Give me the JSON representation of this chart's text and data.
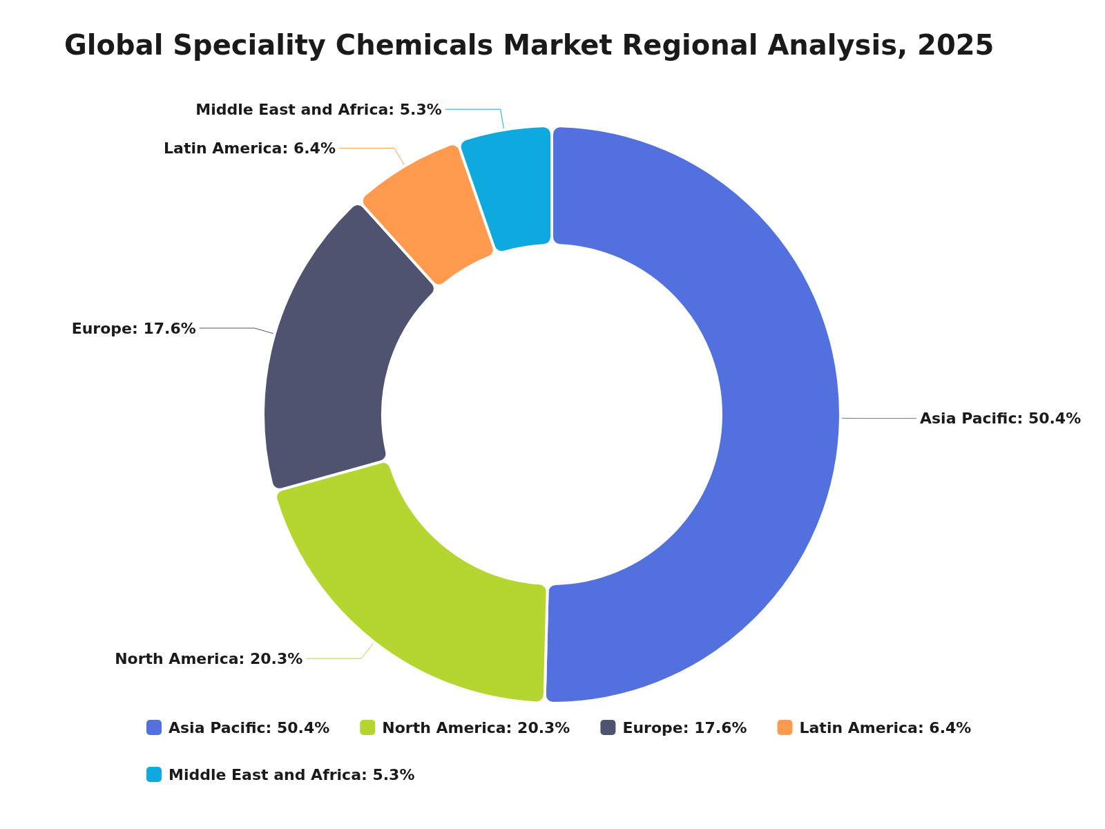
{
  "chart_data": {
    "type": "donut",
    "title": "Global Speciality Chemicals Market Regional Analysis, 2025",
    "categories": [
      "Asia Pacific",
      "North America",
      "Europe",
      "Latin America",
      "Middle East and Africa"
    ],
    "values": [
      50.4,
      20.3,
      17.6,
      6.4,
      5.3
    ],
    "value_labels": [
      "50.4%",
      "20.3%",
      "17.6%",
      "6.4%",
      "5.3%"
    ],
    "colors": [
      "#5271df",
      "#b5d631",
      "#505370",
      "#ff9a4e",
      "#0ea9df"
    ],
    "legend": "bottom"
  }
}
